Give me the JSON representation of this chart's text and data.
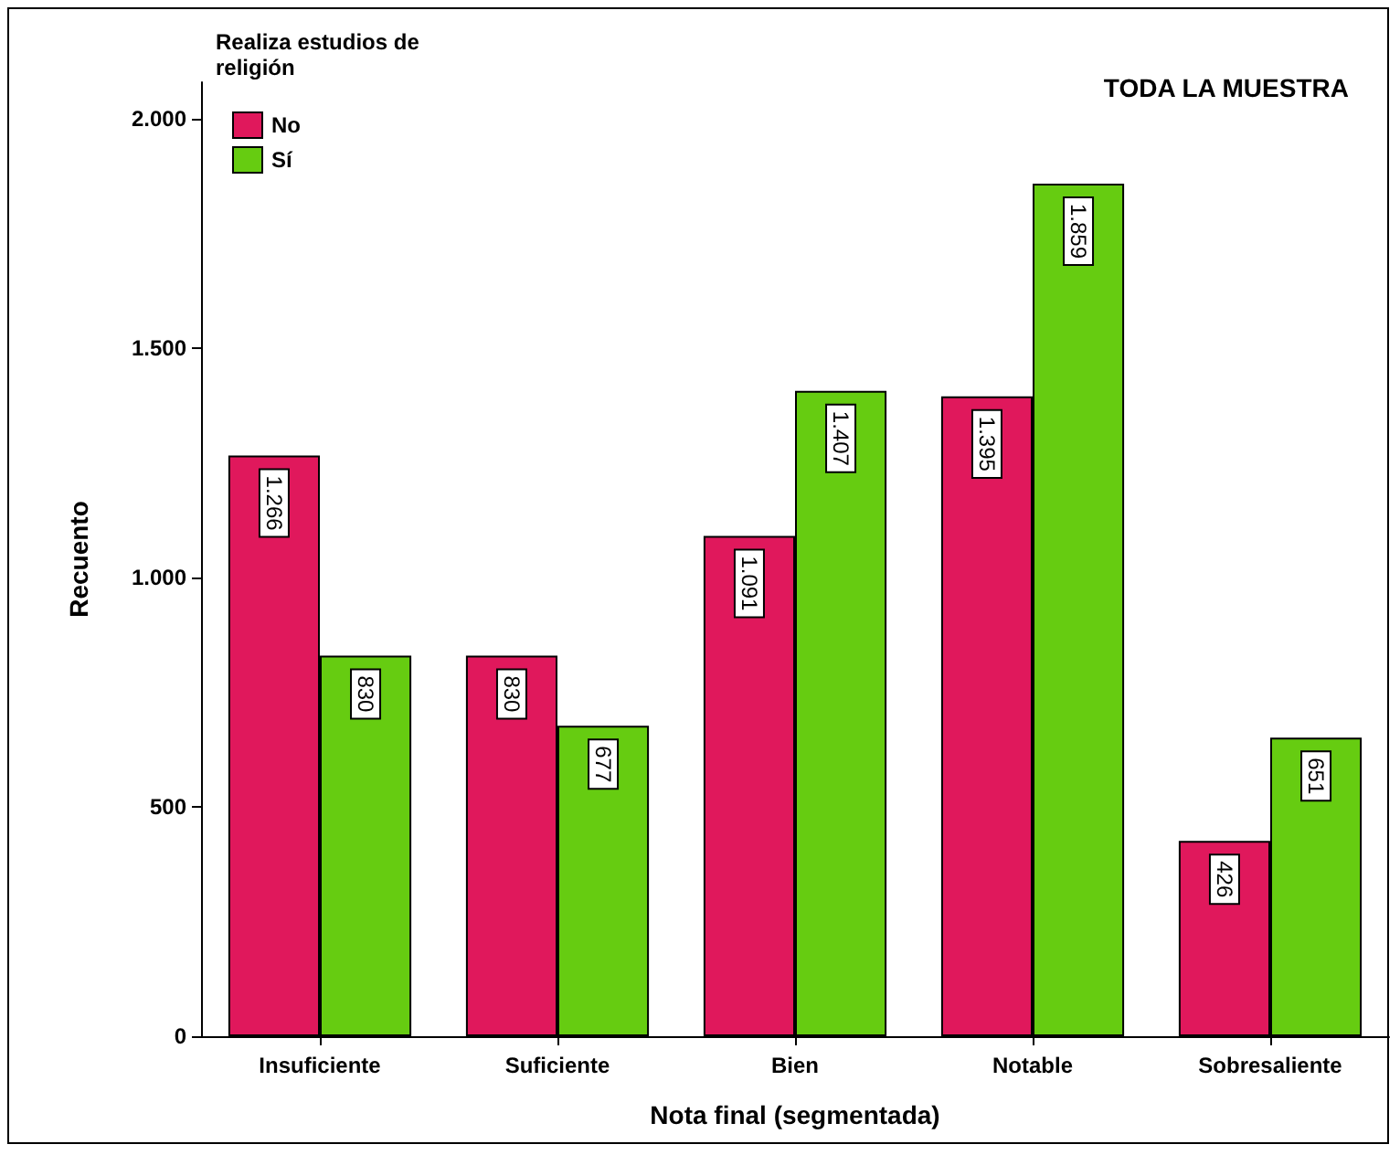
{
  "chart_data": {
    "type": "bar",
    "title": "TODA LA MUESTRA",
    "xlabel": "Nota final (segmentada)",
    "ylabel": "Recuento",
    "legend_title": "Realiza estudios de\nreligión",
    "legend": "top left",
    "categories": [
      "Insuficiente",
      "Suficiente",
      "Bien",
      "Notable",
      "Sobresaliente"
    ],
    "series": [
      {
        "name": "No",
        "color": "#e0185c",
        "values": [
          1266,
          830,
          1091,
          1395,
          426
        ],
        "value_labels": [
          "1.266",
          "830",
          "1.091",
          "1.395",
          "426"
        ]
      },
      {
        "name": "Sí",
        "color": "#66cc11",
        "values": [
          830,
          677,
          1407,
          1859,
          651
        ],
        "value_labels": [
          "830",
          "677",
          "1.407",
          "1.859",
          "651"
        ]
      }
    ],
    "ylim": [
      0,
      2080
    ],
    "yticks": [
      {
        "value": 0,
        "label": "0"
      },
      {
        "value": 500,
        "label": "500"
      },
      {
        "value": 1000,
        "label": "1.000"
      },
      {
        "value": 1500,
        "label": "1.500"
      },
      {
        "value": 2000,
        "label": "2.000"
      }
    ],
    "grid": false
  }
}
